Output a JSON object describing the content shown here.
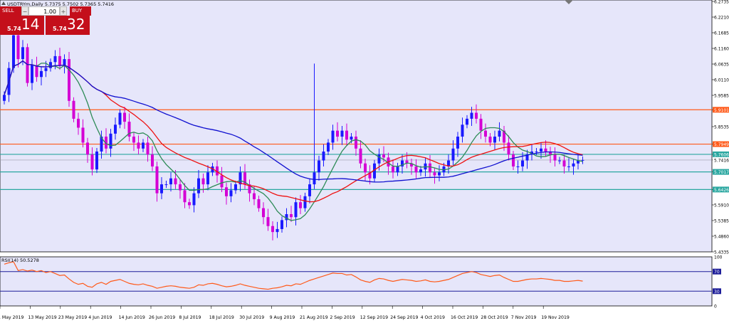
{
  "window": {
    "title": "USDTRYm,Daily  5.7375 5.7502 5.7365 5.7416"
  },
  "trade_panel": {
    "sell_label": "SELL",
    "buy_label": "BUY",
    "lot_value": "1.00",
    "bid_small": "5.74",
    "bid_big": "14",
    "ask_small": "5.74",
    "ask_big": "32"
  },
  "colors": {
    "bull_candle": "#1a1aff",
    "bear_candle": "#d400d4",
    "ma_fast": "#2e8b57",
    "ma_mid": "#ee1111",
    "ma_slow": "#1010d0",
    "level_orange": "#ff5a1a",
    "level_teal": "#2aa7a0",
    "rsi_line": "#ff5a1a",
    "rsi_levels": "#1e1e9a",
    "plot_bg": "#e6e6fa"
  },
  "chart_data": [
    {
      "type": "candlestick",
      "symbol": "USDTRYm",
      "timeframe": "Daily",
      "title": "USDTRYm,Daily  5.7375 5.7502 5.7365 5.7416",
      "ylim": [
        5.4335,
        6.2735
      ],
      "y_ticks": [
        "6.2735",
        "6.2210",
        "6.1685",
        "6.1160",
        "6.0635",
        "6.0110",
        "5.9585",
        "5.9101",
        "5.8535",
        "5.7949",
        "5.7606",
        "5.7416",
        "5.7017",
        "5.6426",
        "5.5910",
        "5.5385",
        "5.4860",
        "5.4335"
      ],
      "x_labels": [
        "1 May 2019",
        "13 May 2019",
        "23 May 2019",
        "4 Jun 2019",
        "14 Jun 2019",
        "26 Jun 2019",
        "8 Jul 2019",
        "18 Jul 2019",
        "30 Jul 2019",
        "9 Aug 2019",
        "21 Aug 2019",
        "2 Sep 2019",
        "12 Sep 2019",
        "24 Sep 2019",
        "4 Oct 2019",
        "16 Oct 2019",
        "28 Oct 2019",
        "7 Nov 2019",
        "19 Nov 2019"
      ],
      "horizontal_levels": [
        {
          "value": 5.9101,
          "color": "orange"
        },
        {
          "value": 5.7949,
          "color": "orange"
        },
        {
          "value": 5.7606,
          "color": "teal"
        },
        {
          "value": 5.7017,
          "color": "teal"
        },
        {
          "value": 5.6426,
          "color": "teal"
        }
      ],
      "current_price": 5.7416,
      "close_series": [
        5.96,
        6.05,
        6.16,
        6.08,
        6.12,
        6.0,
        6.06,
        6.02,
        6.04,
        6.05,
        6.07,
        6.09,
        6.06,
        6.08,
        5.94,
        5.88,
        5.85,
        5.8,
        5.76,
        5.71,
        5.77,
        5.82,
        5.78,
        5.83,
        5.86,
        5.9,
        5.87,
        5.82,
        5.8,
        5.78,
        5.8,
        5.76,
        5.72,
        5.63,
        5.66,
        5.66,
        5.68,
        5.66,
        5.64,
        5.6,
        5.59,
        5.63,
        5.68,
        5.66,
        5.7,
        5.72,
        5.69,
        5.65,
        5.62,
        5.64,
        5.66,
        5.7,
        5.66,
        5.63,
        5.61,
        5.58,
        5.55,
        5.52,
        5.5,
        5.51,
        5.54,
        5.56,
        5.55,
        5.6,
        5.58,
        5.62,
        5.66,
        5.7,
        5.74,
        5.77,
        5.8,
        5.84,
        5.82,
        5.84,
        5.81,
        5.82,
        5.78,
        5.73,
        5.7,
        5.68,
        5.73,
        5.76,
        5.75,
        5.72,
        5.7,
        5.72,
        5.74,
        5.73,
        5.72,
        5.7,
        5.71,
        5.73,
        5.7,
        5.69,
        5.7,
        5.72,
        5.74,
        5.78,
        5.82,
        5.86,
        5.88,
        5.9,
        5.88,
        5.84,
        5.82,
        5.8,
        5.82,
        5.84,
        5.8,
        5.76,
        5.72,
        5.72,
        5.74,
        5.76,
        5.77,
        5.77,
        5.78,
        5.77,
        5.76,
        5.74,
        5.74,
        5.72,
        5.72,
        5.73,
        5.74,
        5.7416
      ],
      "moving_averages": [
        {
          "id": "fast",
          "color_key": "ma_fast",
          "period": 8
        },
        {
          "id": "mid",
          "color_key": "ma_mid",
          "period": 21
        },
        {
          "id": "slow",
          "color_key": "ma_slow",
          "period": 50
        }
      ]
    },
    {
      "type": "line",
      "title": "RSI(14) 50.5278",
      "ylim": [
        0,
        100
      ],
      "y_ticks": [
        "100",
        "70",
        "30",
        "0"
      ],
      "levels": [
        70,
        30
      ],
      "current_value": 50.5278,
      "values": [
        85,
        88,
        90,
        72,
        74,
        71,
        73,
        70,
        72,
        68,
        70,
        66,
        62,
        63,
        55,
        48,
        44,
        46,
        40,
        38,
        45,
        48,
        44,
        50,
        52,
        54,
        50,
        46,
        44,
        43,
        45,
        42,
        40,
        36,
        38,
        40,
        41,
        40,
        38,
        37,
        36,
        38,
        43,
        42,
        45,
        46,
        44,
        41,
        39,
        40,
        42,
        45,
        42,
        40,
        38,
        36,
        35,
        34,
        36,
        37,
        39,
        42,
        41,
        45,
        44,
        48,
        52,
        55,
        58,
        61,
        64,
        67,
        66,
        66,
        63,
        64,
        59,
        53,
        50,
        48,
        53,
        56,
        55,
        52,
        50,
        52,
        54,
        53,
        52,
        50,
        51,
        53,
        50,
        49,
        50,
        52,
        54,
        58,
        62,
        66,
        68,
        70,
        68,
        64,
        62,
        60,
        62,
        63,
        58,
        54,
        50,
        50,
        52,
        54,
        55,
        55,
        56,
        55,
        54,
        52,
        52,
        50,
        50,
        51,
        52,
        50.5
      ]
    }
  ]
}
